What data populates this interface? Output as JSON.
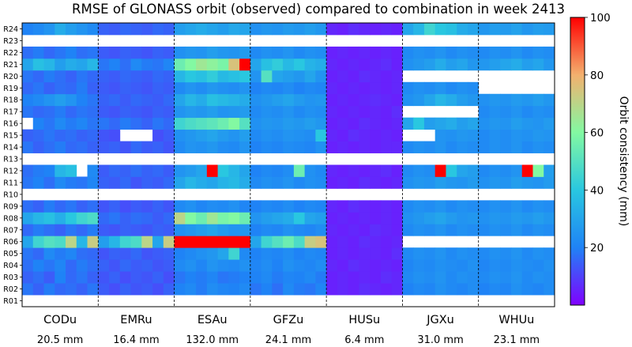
{
  "chart_data": {
    "type": "heatmap",
    "title": "RMSE of GLONASS orbit (observed) compared to combination in week 2413",
    "satellites": [
      "R01",
      "R02",
      "R03",
      "R04",
      "R05",
      "R06",
      "R07",
      "R08",
      "R09",
      "R10",
      "R11",
      "R12",
      "R13",
      "R14",
      "R15",
      "R16",
      "R17",
      "R18",
      "R19",
      "R20",
      "R21",
      "R22",
      "R23",
      "R24"
    ],
    "centers": [
      {
        "name": "CODu",
        "mean": "20.5 mm"
      },
      {
        "name": "EMRu",
        "mean": "16.4 mm"
      },
      {
        "name": "ESAu",
        "mean": "132.0 mm"
      },
      {
        "name": "GFZu",
        "mean": "24.1 mm"
      },
      {
        "name": "HUSu",
        "mean": "6.4 mm"
      },
      {
        "name": "JGXu",
        "mean": "31.0 mm"
      },
      {
        "name": "WHUu",
        "mean": "23.1 mm"
      }
    ],
    "days_per_center": 7,
    "colorbar": {
      "label": "Orbit consistency (mm)",
      "min": 0,
      "max": 100,
      "ticks": [
        20,
        40,
        60,
        80,
        100
      ],
      "colormap": "rainbow"
    },
    "values": {
      "CODu": {
        "R01": "",
        "R02": "18 15 19 16 17 15 18",
        "R03": "15 17 14 20 16 18 15",
        "R04": "17 20 18 21 16 19 17",
        "R05": "18 16 22 19 21 17 16",
        "R06": "30 45 50 48 70 35 72",
        "R07": "16 19 17 15 18 16 19",
        "R08": "30 35 38 33 40 45 48",
        "R09": "17 15 19 16 18 15 17",
        "R10": "",
        "R11": "18 20 17 22 19 18 21",
        "R12": "17 19 20 35 38 - 22",
        "R13": "",
        "R14": "18 15 17 19 16 17 15",
        "R15": "15 16 18 16 17 15 16",
        "R16": "- 20 18 22 19 21 18",
        "R17": "18 16 17 19 16 18 17",
        "R18": "20 22 25 28 25 20 18",
        "R19": "16 18 15 17 16 19 15",
        "R20": "18 16 19 17 15 18 16",
        "R21": "30 38 35 28 32 30 35",
        "R22": "17 19 16 18 20 17 18",
        "R23": "",
        "R24": "20 22 25 32 28 25 22"
      },
      "EMRu": {
        "R01": "",
        "R02": "14 12 15 13 14 12 15",
        "R03": "13 15 12 14 13 15 12",
        "R04": "15 13 16 14 15 13 14",
        "R05": "13 15 14 16 13 14 15",
        "R06": "28 35 45 48 70 30 72",
        "R07": "14 13 15 14 13 15 14",
        "R08": "16 18 15 17 16 14 16",
        "R09": "13 15 12 14 13 15 13",
        "R10": "",
        "R11": "15 14 16 13 15 14 16",
        "R12": "14 16 15 17 15 16 14",
        "R13": "",
        "R14": "14 15 13 16 14 15 13",
        "R15": "13 12 - - - 12 14",
        "R16": "18 16 19 17 15 18 16",
        "R17": "14 13 15 14 13 15 14",
        "R18": "15 16 14 16 15 14 16",
        "R19": "14 13 15 14 13 15 14",
        "R20": "15 14 16 15 14 16 15",
        "R21": "18 20 17 22 19 18 21",
        "R22": "14 13 15 14 13 15 14",
        "R23": "",
        "R24": "15 14 16 15 14 16 15"
      },
      "ESAu": {
        "R01": "",
        "R02": "20 22 19 23 21 20 22",
        "R03": "18 20 19 21 18 19 20",
        "R04": "22 24 21 25 23 22 24",
        "R05": "20 22 24 26 30 45 22",
        "R06": "100 100 100 100 100 100 100",
        "R07": "24 26 28 30 27 25 26",
        "R08": "70 60 55 65 58 60 55",
        "R09": "22 24 21 23 22 24 21",
        "R10": "",
        "R11": "30 35 32 30 34 36 32",
        "R12": "25 27 30 100 40 35 30",
        "R13": "",
        "R14": "22 25 24 26 23 22 25",
        "R15": "24 26 28 30 27 25 28",
        "R16": "45 48 50 52 55 60 50",
        "R17": "25 27 26 28 25 26 27",
        "R18": "30 35 32 38 36 34 32",
        "R19": "22 25 23 26 24 23 25",
        "R20": "35 40 38 42 36 38 40",
        "R21": "55 60 65 62 58 75 100",
        "R22": "24 26 25 28 26 25 27",
        "R23": "",
        "R24": "28 30 32 30 28 31 30"
      },
      "GFZu": {
        "R01": "",
        "R02": "18 20 17 22 19 18 21",
        "R03": "20 22 19 21 20 22 19",
        "R04": "21 23 20 24 22 21 23",
        "R05": "20 22 21 23 20 22 21",
        "R06": "30 45 50 55 48 72 75",
        "R07": "20 22 21 24 22 21 23",
        "R08": "25 28 30 32 40 30 28",
        "R09": "20 22 21 23 20 22 21",
        "R10": "",
        "R11": "22 24 23 25 22 24 23",
        "R12": "20 22 21 23 55 24 22",
        "R13": "",
        "R14": "20 22 21 23 22 21 24",
        "R15": "22 24 23 25 24 23 40",
        "R16": "24 26 25 27 26 28 26",
        "R17": "22 24 23 25 22 24 23",
        "R18": "24 26 28 30 27 25 26",
        "R19": "20 22 21 23 20 22 21",
        "R20": "25 50 30 28 26 30 25",
        "R21": "30 38 42 36 40 34 32",
        "R22": "22 24 23 25 22 24 23",
        "R23": "",
        "R24": "24 26 25 27 26 28 26"
      },
      "HUSu": {
        "R01": "",
        "R02": "5 6 5 7 6 5 6",
        "R03": "5 6 5 6 5 7 6",
        "R04": "6 5 7 6 5 6 5",
        "R05": "5 6 5 6 6 5 7",
        "R06": "5 6 5 7 6 5 6",
        "R07": "6 5 6 5 7 6 5",
        "R08": "5 6 5 6 5 6 5",
        "R09": "6 5 7 6 5 6 5",
        "R10": "",
        "R11": "5 6 5 7 6 5 6",
        "R12": "6 5 6 5 6 7 5",
        "R13": "",
        "R14": "5 6 5 6 5 6 6",
        "R15": "6 5 7 6 5 6 5",
        "R16": "5 6 5 7 6 5 6",
        "R17": "6 5 6 5 6 5 7",
        "R18": "5 6 5 6 7 6 5",
        "R19": "6 5 6 5 6 5 6",
        "R20": "5 6 5 7 6 5 6",
        "R21": "6 5 6 5 6 7 5",
        "R22": "5 6 5 6 5 6 5",
        "R23": "",
        "R24": "6 5 7 6 5 6 5"
      },
      "JGXu": {
        "R01": "",
        "R02": "20 22 21 24 22 21 23",
        "R03": "22 24 23 25 22 24 23",
        "R04": "21 23 22 24 23 22 24",
        "R05": "22 24 23 25 22 24 23",
        "R06": "- - - - - - -",
        "R07": "22 24 23 25 22 24 23",
        "R08": "24 26 28 30 27 25 26",
        "R09": "22 24 23 25 22 24 23",
        "R10": "",
        "R11": "24 26 25 28 26 25 27",
        "R12": "22 24 23 100 40 30 28",
        "R13": "",
        "R14": "22 24 23 25 22 24 23",
        "R15": "- - - 25 24 26 25",
        "R16": "30 40 28 30 32 28 30",
        "R17": "- - - - - - -",
        "R18": "24 26 30 35 32 28 26",
        "R19": "22 24 23 25 22 24 23",
        "R20": "- - - - - - -",
        "R21": "24 26 28 32 28 30 26",
        "R22": "22 24 23 25 22 24 23",
        "R23": "",
        "R24": "30 35 45 40 38 32 30"
      },
      "WHUu": {
        "R01": "",
        "R02": "20 22 21 24 22 21 23",
        "R03": "22 24 23 25 22 24 23",
        "R04": "21 23 22 24 23 22 24",
        "R05": "22 24 23 25 22 24 23",
        "R06": "- - - - - - -",
        "R07": "22 24 23 25 22 24 23",
        "R08": "24 26 25 27 26 28 26",
        "R09": "22 24 23 25 22 24 23",
        "R10": "",
        "R11": "24 26 25 28 26 25 27",
        "R12": "22 24 23 25 100 60 28",
        "R13": "",
        "R14": "22 24 23 25 22 24 23",
        "R15": "22 24 23 25 24 26 25",
        "R16": "24 26 25 28 26 25 27",
        "R17": "22 24 23 25 22 24 23",
        "R18": "24 26 25 27 26 28 26",
        "R19": "- - - - - - -",
        "R20": "- - - - - - -",
        "R21": "26 28 30 32 28 30 26",
        "R22": "22 24 23 25 22 24 23",
        "R23": "",
        "R24": "26 28 27 29 26 28 27"
      }
    }
  }
}
